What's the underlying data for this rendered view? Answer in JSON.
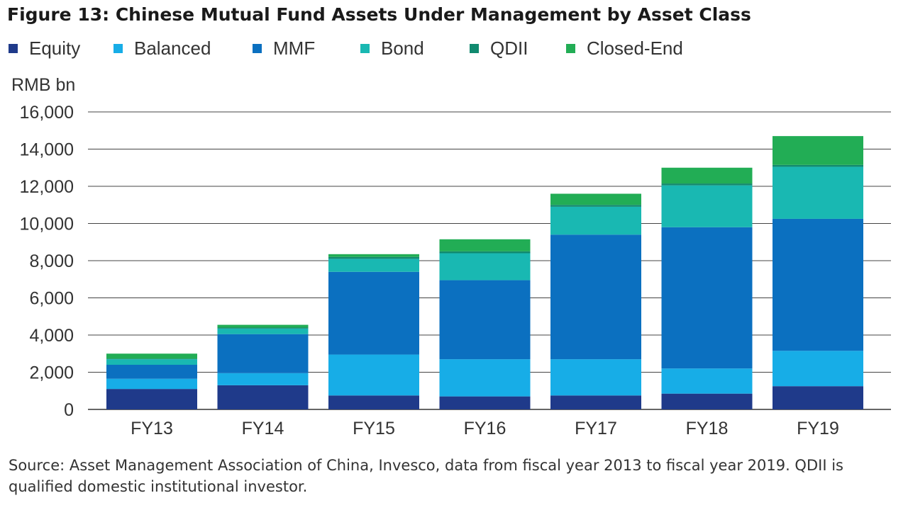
{
  "chart_data": {
    "type": "bar",
    "stacked": true,
    "title": "Figure 13: Chinese Mutual Fund Assets Under Management by Asset Class",
    "ylabel": "RMB bn",
    "xlabel": "",
    "ylim": [
      0,
      16000
    ],
    "yticks": [
      0,
      2000,
      4000,
      6000,
      8000,
      10000,
      12000,
      14000,
      16000
    ],
    "ytick_labels": [
      "0",
      "2,000",
      "4,000",
      "6,000",
      "8,000",
      "10,000",
      "12,000",
      "14,000",
      "16,000"
    ],
    "grid": true,
    "legend_position": "top",
    "categories": [
      "FY13",
      "FY14",
      "FY15",
      "FY16",
      "FY17",
      "FY18",
      "FY19"
    ],
    "series": [
      {
        "name": "Equity",
        "color": "#1f3a8a",
        "values": [
          1100,
          1300,
          750,
          700,
          750,
          850,
          1250
        ]
      },
      {
        "name": "Balanced",
        "color": "#17ade7",
        "values": [
          550,
          650,
          2200,
          2000,
          1950,
          1350,
          1900
        ]
      },
      {
        "name": "MMF",
        "color": "#0b70c0",
        "values": [
          750,
          2100,
          4450,
          4250,
          6700,
          7600,
          7100
        ]
      },
      {
        "name": "Bond",
        "color": "#19b8b2",
        "values": [
          300,
          300,
          700,
          1450,
          1500,
          2250,
          2800
        ]
      },
      {
        "name": "QDII",
        "color": "#118a6f",
        "values": [
          30,
          50,
          100,
          100,
          100,
          100,
          100
        ]
      },
      {
        "name": "Closed-End",
        "color": "#22ad55",
        "values": [
          270,
          150,
          150,
          650,
          600,
          850,
          1550
        ]
      }
    ]
  },
  "source_text": "Source: Asset Management Association of China, Invesco, data from fiscal year 2013 to fiscal year 2019. QDII is qualified domestic institutional investor."
}
